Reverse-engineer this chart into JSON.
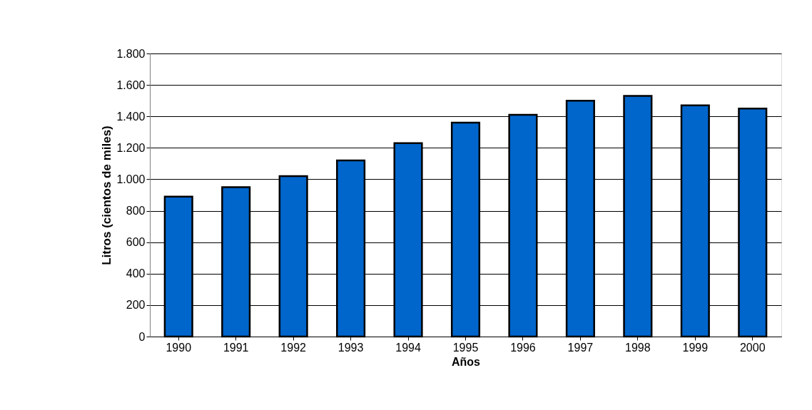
{
  "chart_data": {
    "type": "bar",
    "xlabel": "Años",
    "ylabel": "Litros (cientos de miles)",
    "categories": [
      "1990",
      "1991",
      "1992",
      "1993",
      "1994",
      "1995",
      "1996",
      "1997",
      "1998",
      "1999",
      "2000"
    ],
    "values": [
      890,
      950,
      1020,
      1120,
      1230,
      1360,
      1410,
      1500,
      1530,
      1470,
      1450
    ],
    "color": "#0066cc",
    "ylim": [
      0,
      1800
    ],
    "yticks": [
      0,
      200,
      400,
      600,
      800,
      {
        "value": 1000,
        "label": "1.000"
      },
      {
        "value": 1200,
        "label": "1.200"
      },
      {
        "value": 1400,
        "label": "1.400"
      },
      {
        "value": 1600,
        "label": "1.600"
      },
      {
        "value": 1800,
        "label": "1.800"
      }
    ],
    "grid": "y"
  }
}
